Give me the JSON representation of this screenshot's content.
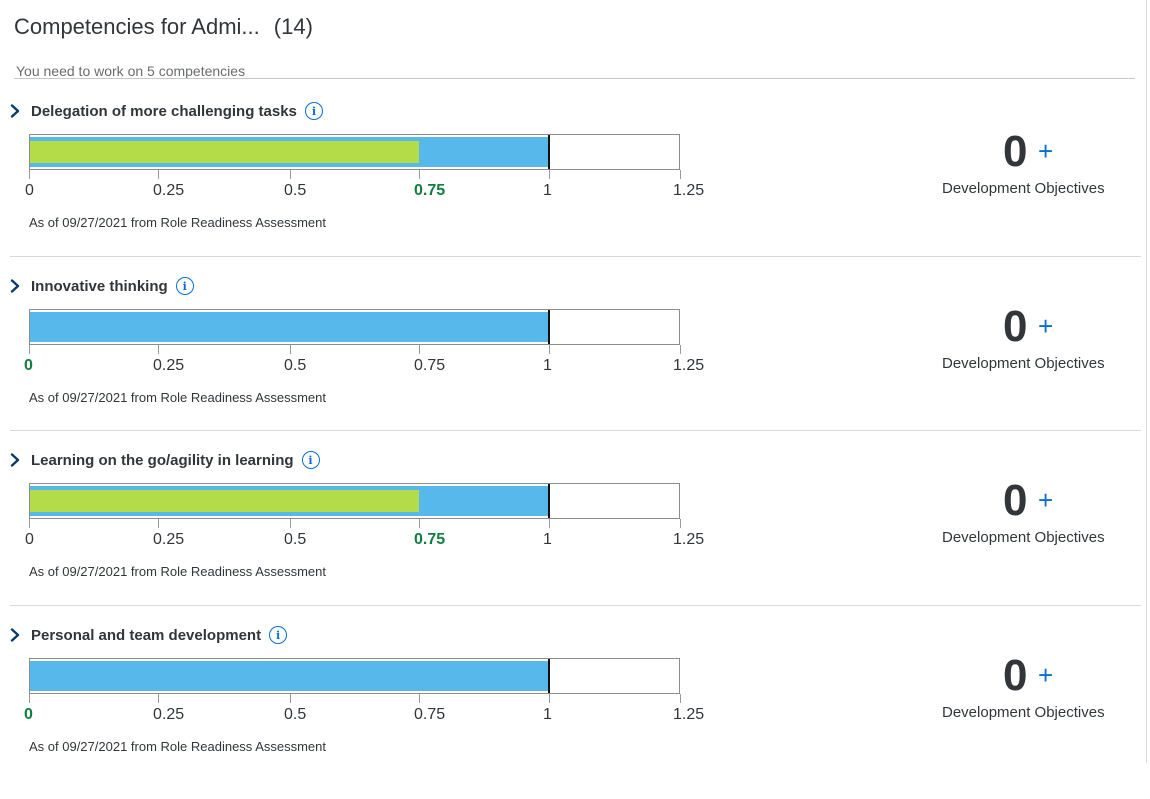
{
  "header": {
    "title": "Competencies for Admi...",
    "count": "(14)",
    "subtitle": "You need to work on 5 competencies"
  },
  "axis_ticks": [
    "0",
    "0.25",
    "0.5",
    "0.75",
    "1",
    "1.25"
  ],
  "axis_max": 1.25,
  "colors": {
    "expected_bar": "#56b8eb",
    "actual_bar": "#b4dc48",
    "highlight_label": "#107e3e",
    "link_blue": "#0a6ed1"
  },
  "competencies": [
    {
      "name": "Delegation of more challenging tasks",
      "expected": 1,
      "actual": 0.75,
      "highlight_tick": 3,
      "as_of": "As of 09/27/2021 from Role Readiness Assessment",
      "objectives_count": "0",
      "objectives_add": "+",
      "objectives_label": "Development Objectives"
    },
    {
      "name": "Innovative thinking",
      "expected": 1,
      "actual": 0,
      "highlight_tick": 0,
      "as_of": "As of 09/27/2021 from Role Readiness Assessment",
      "objectives_count": "0",
      "objectives_add": "+",
      "objectives_label": "Development Objectives"
    },
    {
      "name": "Learning on the go/agility in learning",
      "expected": 1,
      "actual": 0.75,
      "highlight_tick": 3,
      "as_of": "As of 09/27/2021 from Role Readiness Assessment",
      "objectives_count": "0",
      "objectives_add": "+",
      "objectives_label": "Development Objectives"
    },
    {
      "name": "Personal and team development",
      "expected": 1,
      "actual": 0,
      "highlight_tick": 0,
      "as_of": "As of 09/27/2021 from Role Readiness Assessment",
      "objectives_count": "0",
      "objectives_add": "+",
      "objectives_label": "Development Objectives"
    }
  ]
}
